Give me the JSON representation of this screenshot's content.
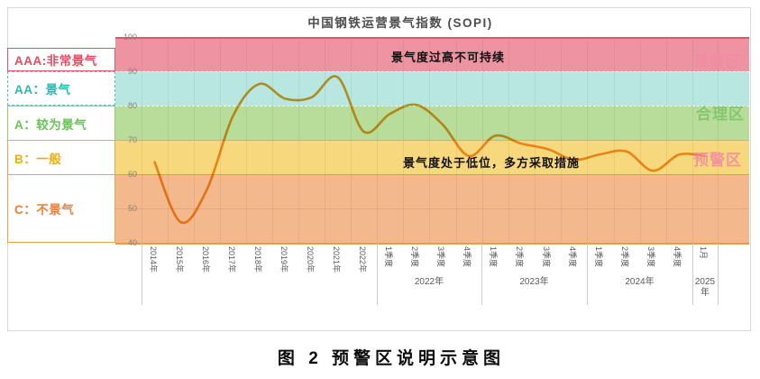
{
  "title": "中国钢铁运营景气指数 (SOPI)",
  "caption": "图 2 预警区说明示意图",
  "annotations": [
    {
      "text": "景气度过高不可持续"
    },
    {
      "text": "景气度处于低位，多方采取措施"
    }
  ],
  "zones": [
    {
      "text": "预警区",
      "color": "#f28ba4"
    },
    {
      "text": "合理区",
      "color": "#7dc466"
    },
    {
      "text": "预警区",
      "color": "#f28ba4"
    }
  ],
  "legend": {
    "items": [
      {
        "label": "AAA:非常景气",
        "color": "#e54b62",
        "border": "#e1566c",
        "style": "solid"
      },
      {
        "label": "AA：景气",
        "color": "#2db9b0",
        "border": "#55c4bb",
        "style": "dashed"
      },
      {
        "label": "A：较为景气",
        "color": "#68c355",
        "border": "#98cd66",
        "style": "solid"
      },
      {
        "label": "B：一般",
        "color": "#f0ad10",
        "border": "#f0a04c",
        "style": "solid"
      },
      {
        "label": "C：不景气",
        "color": "#ee803c",
        "border": "#f0a04c",
        "style": "solid"
      }
    ]
  },
  "chart_data": {
    "type": "line",
    "title": "中国钢铁运营景气指数 (SOPI)",
    "line_color": "#f09c25",
    "ylim": [
      40,
      100
    ],
    "yticks": [
      100,
      90,
      80,
      70,
      60,
      50,
      40
    ],
    "grid": true,
    "bands": [
      {
        "range": [
          90,
          100
        ],
        "color": "#ee93a1",
        "grade": "AAA"
      },
      {
        "range": [
          80,
          90
        ],
        "color": "#b8e7e2",
        "grade": "AA"
      },
      {
        "range": [
          70,
          80
        ],
        "color": "#b8dc9a",
        "grade": "A"
      },
      {
        "range": [
          60,
          70
        ],
        "color": "#f7d87d",
        "grade": "B"
      },
      {
        "range": [
          40,
          60
        ],
        "color": "#f3b88c",
        "grade": "C"
      }
    ],
    "categories": [
      "2014年",
      "2015年",
      "2016年",
      "2017年",
      "2018年",
      "2019年",
      "2020年",
      "2021年",
      "2022年",
      "2022年1季度",
      "2022年2季度",
      "2022年3季度",
      "2022年4季度",
      "2023年1季度",
      "2023年2季度",
      "2023年3季度",
      "2023年4季度",
      "2024年1季度",
      "2024年2季度",
      "2024年3季度",
      "2024年4季度",
      "2025年1月"
    ],
    "tick_labels": [
      "2014年",
      "2015年",
      "2016年",
      "2017年",
      "2018年",
      "2019年",
      "2020年",
      "2021年",
      "2022年",
      "1季度",
      "2季度",
      "3季度",
      "4季度",
      "1季度",
      "2季度",
      "3季度",
      "4季度",
      "1季度",
      "2季度",
      "3季度",
      "4季度",
      "1月"
    ],
    "x_groups": [
      {
        "label": "2022年"
      },
      {
        "label": "2023年"
      },
      {
        "label": "2024年"
      },
      {
        "label": "2025年"
      }
    ],
    "series": [
      {
        "name": "SOPI",
        "values": [
          63.5,
          46,
          55.5,
          77,
          86.3,
          82,
          82.4,
          88.3,
          72.4,
          77.6,
          80.2,
          74.5,
          65.3,
          71.2,
          68.9,
          67.3,
          64.2,
          65.8,
          66.6,
          61,
          65.7,
          65.3
        ]
      }
    ]
  }
}
